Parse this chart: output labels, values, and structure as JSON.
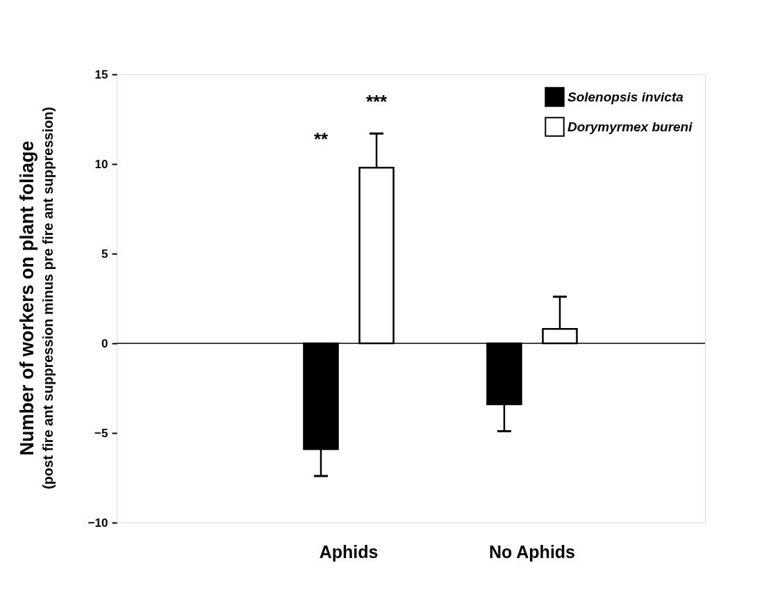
{
  "chart_data": {
    "type": "bar",
    "ylabel": "Number of workers on plant foliage\n(post fire ant suppression minus pre fire ant suppression)",
    "categories": [
      "Aphids",
      "No Aphids"
    ],
    "series": [
      {
        "name": "Solenopsis invicta",
        "color": "#000000",
        "values": [
          -5.9,
          -3.4
        ],
        "errors": [
          [
            -7.4,
            -5.9
          ],
          [
            -4.9,
            -3.4
          ]
        ]
      },
      {
        "name": "Dorymyrmex bureni",
        "color": "#ffffff",
        "values": [
          9.8,
          0.8
        ],
        "errors": [
          [
            9.8,
            11.7
          ],
          [
            0.8,
            2.6
          ]
        ]
      }
    ],
    "ylim": [
      -10,
      15
    ],
    "yticks": [
      -10,
      -5,
      0,
      5,
      10,
      15
    ],
    "ref_lines": [
      {
        "axis": "y",
        "value": 0
      }
    ],
    "annotations": [
      "**",
      "***"
    ],
    "grid": false,
    "legend": "top right"
  }
}
